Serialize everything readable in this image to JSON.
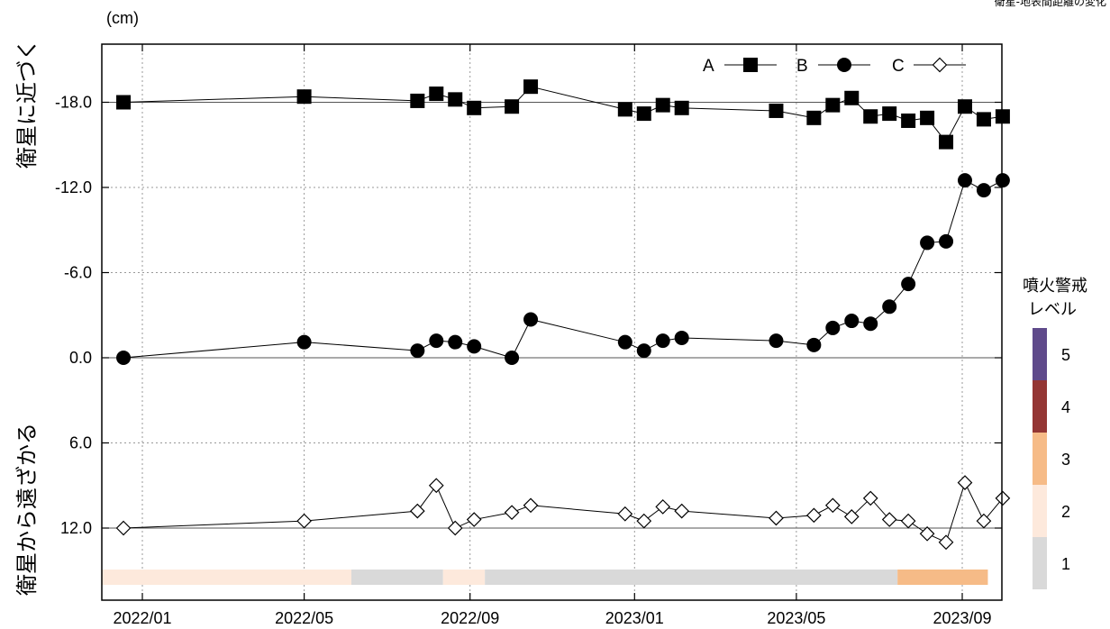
{
  "chart_data": {
    "type": "line",
    "title": "衛星-地表間距離の変化",
    "unit_label": "(cm)",
    "ylabel_upper": "衛星に近づく",
    "ylabel_lower": "衛星から遠ざかる",
    "ylim": [
      -22.0,
      16.0
    ],
    "y_axis_reversed": true,
    "yticks": [
      -18.0,
      -12.0,
      -6.0,
      0.0,
      6.0,
      12.0
    ],
    "ytick_labels": [
      "-18.0",
      "-12.0",
      "-6.0",
      "0.0",
      "6.0",
      "12.0"
    ],
    "xlim": [
      "2021-11-10",
      "2023-09-20"
    ],
    "xticks": [
      "2022-01-01",
      "2022-05-01",
      "2022-09-01",
      "2023-01-01",
      "2023-05-01",
      "2023-09-01"
    ],
    "xtick_labels": [
      "2022/01",
      "2022/05",
      "2022/09",
      "2023/01",
      "2023/05",
      "2023/09"
    ],
    "grid": true,
    "legend_position": "top-right",
    "series": [
      {
        "name": "A",
        "marker": "filled-square",
        "color": "#000000",
        "x": [
          "2021-12-18",
          "2022-05-01",
          "2022-07-24",
          "2022-08-07",
          "2022-08-21",
          "2022-09-04",
          "2022-10-02",
          "2022-10-16",
          "2022-12-25",
          "2023-01-08",
          "2023-01-22",
          "2023-02-05",
          "2023-04-16",
          "2023-05-14",
          "2023-05-28",
          "2023-06-11",
          "2023-06-25",
          "2023-07-09",
          "2023-07-23",
          "2023-08-06",
          "2023-08-20",
          "2023-09-03",
          "2023-09-17",
          "2023-10-01"
        ],
        "values": [
          -18.0,
          -18.4,
          -18.1,
          -18.6,
          -18.2,
          -17.6,
          -17.7,
          -19.1,
          -17.5,
          -17.2,
          -17.8,
          -17.6,
          -17.4,
          -16.9,
          -17.8,
          -18.3,
          -17.0,
          -17.2,
          -16.7,
          -16.9,
          -15.2,
          -17.7,
          -16.8,
          -17.0
        ]
      },
      {
        "name": "B",
        "marker": "filled-circle",
        "color": "#000000",
        "x": [
          "2021-12-18",
          "2022-05-01",
          "2022-07-24",
          "2022-08-07",
          "2022-08-21",
          "2022-09-04",
          "2022-10-02",
          "2022-10-16",
          "2022-12-25",
          "2023-01-08",
          "2023-01-22",
          "2023-02-05",
          "2023-04-16",
          "2023-05-14",
          "2023-05-28",
          "2023-06-11",
          "2023-06-25",
          "2023-07-09",
          "2023-07-23",
          "2023-08-06",
          "2023-08-20",
          "2023-09-03",
          "2023-09-17",
          "2023-10-01"
        ],
        "values": [
          0.0,
          -1.1,
          -0.5,
          -1.2,
          -1.1,
          -0.8,
          0.0,
          -2.7,
          -1.1,
          -0.5,
          -1.2,
          -1.4,
          -1.2,
          -0.9,
          -2.1,
          -2.6,
          -2.4,
          -3.6,
          -5.2,
          -8.1,
          -8.2,
          -12.5,
          -11.8,
          -12.5
        ]
      },
      {
        "name": "C",
        "marker": "open-diamond",
        "color": "#000000",
        "x": [
          "2021-12-18",
          "2022-05-01",
          "2022-07-24",
          "2022-08-07",
          "2022-08-21",
          "2022-09-04",
          "2022-10-02",
          "2022-10-16",
          "2022-12-25",
          "2023-01-08",
          "2023-01-22",
          "2023-02-05",
          "2023-04-16",
          "2023-05-14",
          "2023-05-28",
          "2023-06-11",
          "2023-06-25",
          "2023-07-09",
          "2023-07-23",
          "2023-08-06",
          "2023-08-20",
          "2023-09-03",
          "2023-09-17",
          "2023-10-01"
        ],
        "values": [
          12.0,
          11.5,
          10.8,
          9.0,
          12.0,
          11.4,
          10.9,
          10.4,
          11.0,
          11.5,
          10.5,
          10.8,
          11.3,
          11.1,
          10.4,
          11.2,
          9.9,
          11.4,
          11.5,
          12.4,
          13.0,
          8.8,
          11.5,
          9.9
        ]
      }
    ],
    "alert_bar": {
      "segments": [
        {
          "start": "2021-11-10",
          "end": "2022-06-05",
          "level": 2
        },
        {
          "start": "2022-06-05",
          "end": "2022-08-12",
          "level": 1
        },
        {
          "start": "2022-08-12",
          "end": "2022-09-12",
          "level": 2
        },
        {
          "start": "2022-09-12",
          "end": "2023-07-15",
          "level": 1
        },
        {
          "start": "2023-07-15",
          "end": "2023-09-20",
          "level": 3
        }
      ]
    },
    "level_legend": {
      "title_line1": "噴火警戒",
      "title_line2": "レベル",
      "levels": [
        {
          "level": "5",
          "color": "#5f4a8b"
        },
        {
          "level": "4",
          "color": "#943634"
        },
        {
          "level": "3",
          "color": "#f6bb87"
        },
        {
          "level": "2",
          "color": "#fde9dc"
        },
        {
          "level": "1",
          "color": "#d9d9d9"
        }
      ]
    }
  }
}
